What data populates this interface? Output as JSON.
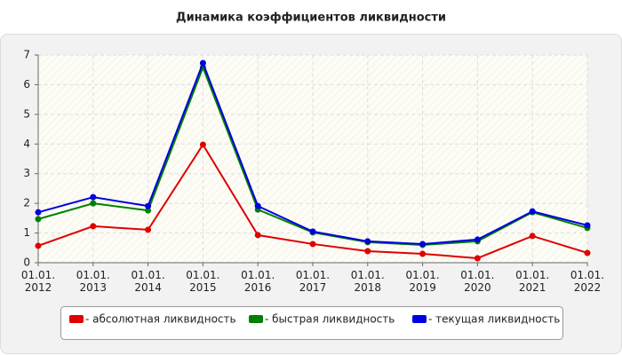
{
  "chart_data": {
    "type": "line",
    "title": "Динамика коэффициентов ликвидности",
    "categories": [
      "01.01. 2012",
      "01.01. 2013",
      "01.01. 2014",
      "01.01. 2015",
      "01.01. 2016",
      "01.01. 2017",
      "01.01. 2018",
      "01.01. 2019",
      "01.01. 2020",
      "01.01. 2021",
      "01.01. 2022"
    ],
    "series": [
      {
        "name": "- абсолютная ликвидность",
        "color": "#e00000",
        "values": [
          0.57,
          1.23,
          1.11,
          3.98,
          0.93,
          0.63,
          0.39,
          0.3,
          0.15,
          0.9,
          0.33
        ]
      },
      {
        "name": "- быстрая ликвидность",
        "color": "#008000",
        "values": [
          1.47,
          2.0,
          1.76,
          6.58,
          1.79,
          1.02,
          0.69,
          0.6,
          0.72,
          1.7,
          1.17
        ]
      },
      {
        "name": "- текущая ликвидность",
        "color": "#0000e0",
        "values": [
          1.7,
          2.21,
          1.91,
          6.73,
          1.91,
          1.05,
          0.72,
          0.63,
          0.78,
          1.73,
          1.26
        ]
      }
    ],
    "ylim": [
      0,
      7
    ],
    "yticks": [
      0,
      1,
      2,
      3,
      4,
      5,
      6,
      7
    ],
    "grid": true,
    "legend": "bottom"
  }
}
